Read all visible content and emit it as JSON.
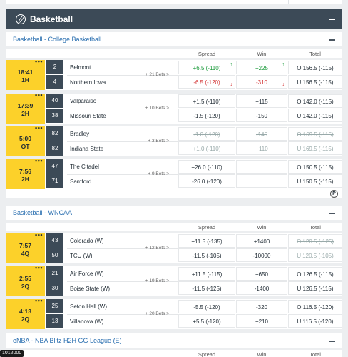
{
  "sport": {
    "title": "Basketball"
  },
  "leagues": [
    {
      "name": "Basketball - College Basketball"
    },
    {
      "name": "Basketball - WNCAA"
    },
    {
      "name": "eNBA - NBA Blitz H2H GG League (E)"
    }
  ],
  "columns": {
    "spread": "Spread",
    "win": "Win",
    "total": "Total"
  },
  "games": [
    {
      "time": "18:41",
      "period": "1H",
      "bets": "+ 21 Bets >",
      "home": {
        "score": "2",
        "team": "Belmont",
        "spread": "+6.5 (-110)",
        "win": "+225",
        "total": "O 156.5 (-115)"
      },
      "away": {
        "score": "4",
        "team": "Northern Iowa",
        "spread": "-6.5 (-120)",
        "win": "-310",
        "total": "U 156.5 (-115)"
      }
    },
    {
      "time": "17:39",
      "period": "2H",
      "bets": "+ 10 Bets >",
      "home": {
        "score": "40",
        "team": "Valparaiso",
        "spread": "+1.5 (-110)",
        "win": "+115",
        "total": "O 142.0 (-115)"
      },
      "away": {
        "score": "38",
        "team": "Missouri State",
        "spread": "-1.5 (-120)",
        "win": "-150",
        "total": "U 142.0 (-115)"
      }
    },
    {
      "time": "5:00",
      "period": "OT",
      "bets": "+ 3 Bets >",
      "home": {
        "score": "82",
        "team": "Bradley",
        "spread": "-1.0 (-120)",
        "win": "-145",
        "total": "O 169.5 (-115)"
      },
      "away": {
        "score": "82",
        "team": "Indiana State",
        "spread": "+1.0 (-110)",
        "win": "+110",
        "total": "U 169.5 (-115)"
      }
    },
    {
      "time": "7:56",
      "period": "2H",
      "bets": "+ 9 Bets >",
      "home": {
        "score": "47",
        "team": "The Citadel",
        "spread": "+26.0 (-110)",
        "win": "",
        "total": "O 150.5 (-115)"
      },
      "away": {
        "score": "71",
        "team": "Samford",
        "spread": "-26.0 (-120)",
        "win": "",
        "total": "U 150.5 (-115)"
      }
    },
    {
      "time": "7:57",
      "period": "4Q",
      "bets": "+ 12 Bets >",
      "home": {
        "score": "43",
        "team": "Colorado (W)",
        "spread": "+11.5 (-135)",
        "win": "+1400",
        "total": "O 120.5 (-125)"
      },
      "away": {
        "score": "50",
        "team": "TCU (W)",
        "spread": "-11.5 (-105)",
        "win": "-10000",
        "total": "U 120.5 (-105)"
      }
    },
    {
      "time": "2:55",
      "period": "2Q",
      "bets": "+ 19 Bets >",
      "home": {
        "score": "21",
        "team": "Air Force (W)",
        "spread": "+11.5 (-115)",
        "win": "+650",
        "total": "O 126.5 (-115)"
      },
      "away": {
        "score": "30",
        "team": "Boise State (W)",
        "spread": "-11.5 (-125)",
        "win": "-1400",
        "total": "U 126.5 (-115)"
      }
    },
    {
      "time": "4:13",
      "period": "2Q",
      "bets": "+ 20 Bets >",
      "home": {
        "score": "25",
        "team": "Seton Hall (W)",
        "spread": "-5.5 (-120)",
        "win": "-320",
        "total": "O 116.5 (-120)"
      },
      "away": {
        "score": "13",
        "team": "Villanova (W)",
        "spread": "+5.5 (-120)",
        "win": "+210",
        "total": "U 116.5 (-120)"
      }
    }
  ],
  "live_id": "1012000",
  "icons": {
    "sport": "basketball-icon",
    "collapse": "minus-icon",
    "more": "more-dots-icon",
    "info": "p-circle-icon"
  },
  "colors": {
    "header": "#3c4a57",
    "clock": "#fcd12a",
    "link": "#2a6fb0",
    "up": "#1a9a3a",
    "down": "#d12a2a"
  }
}
